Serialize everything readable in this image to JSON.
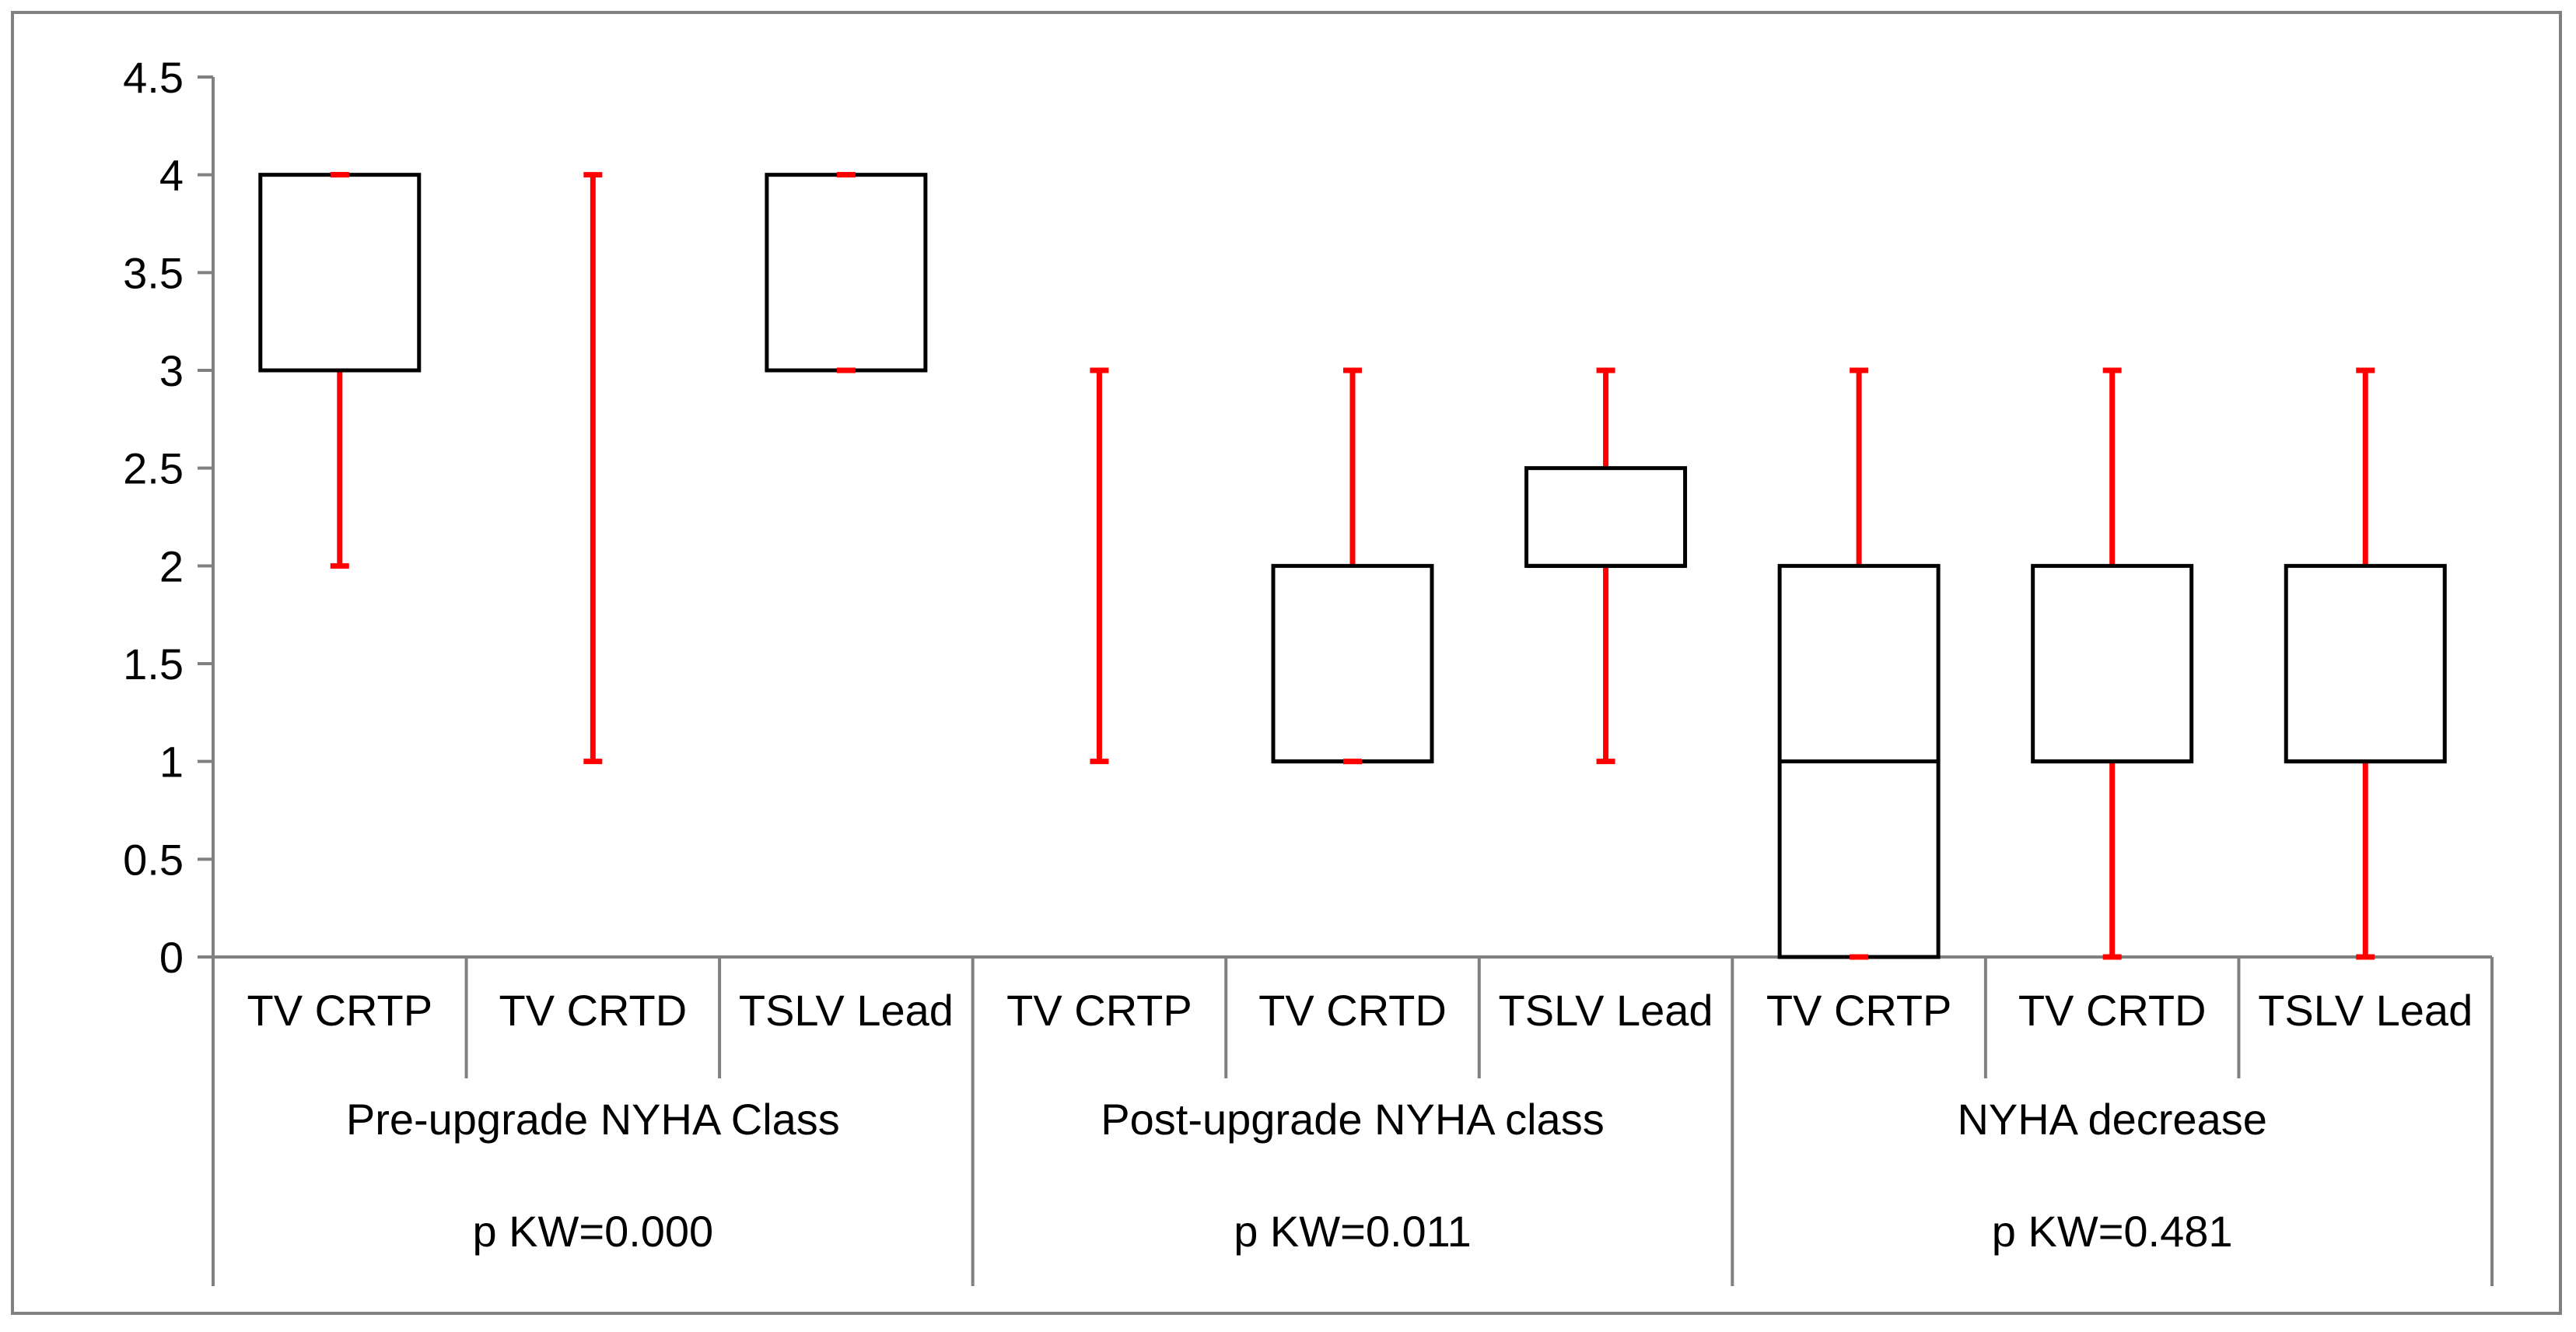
{
  "chart_data": {
    "type": "box",
    "ylim": [
      0,
      4.5
    ],
    "yticks": [
      0,
      0.5,
      1,
      1.5,
      2,
      2.5,
      3,
      3.5,
      4,
      4.5
    ],
    "ytick_labels": [
      "0",
      "0.5",
      "1",
      "1.5",
      "2",
      "2.5",
      "3",
      "3.5",
      "4",
      "4.5"
    ],
    "groups": [
      {
        "label": "Pre-upgrade NYHA Class",
        "pvalue": "p KW=0.000",
        "boxes": [
          {
            "category": "TV CRTP",
            "min": 2,
            "q1": 3,
            "median": 3,
            "q3": 4,
            "max": 4
          },
          {
            "category": "TV CRTD",
            "min": 1,
            "q1": 3,
            "median": 3,
            "q3": 3,
            "max": 4
          },
          {
            "category": "TSLV Lead",
            "min": 3,
            "q1": 3,
            "median": 3,
            "q3": 4,
            "max": 4
          }
        ]
      },
      {
        "label": "Post-upgrade NYHA class",
        "pvalue": "p KW=0.011",
        "boxes": [
          {
            "category": "TV CRTP",
            "min": 1,
            "q1": 2,
            "median": 2,
            "q3": 2,
            "max": 3
          },
          {
            "category": "TV CRTD",
            "min": 1,
            "q1": 1,
            "median": 1,
            "q3": 2,
            "max": 3
          },
          {
            "category": "TSLV Lead",
            "min": 1,
            "q1": 2,
            "median": 2,
            "q3": 2.5,
            "max": 3
          }
        ]
      },
      {
        "label": "NYHA decrease",
        "pvalue": "p KW=0.481",
        "boxes": [
          {
            "category": "TV CRTP",
            "min": 0,
            "q1": 0,
            "median": 1,
            "q3": 2,
            "max": 3
          },
          {
            "category": "TV CRTD",
            "min": 0,
            "q1": 1,
            "median": 1,
            "q3": 2,
            "max": 3
          },
          {
            "category": "TSLV Lead",
            "min": 0,
            "q1": 1,
            "median": 1,
            "q3": 2,
            "max": 3
          }
        ]
      }
    ],
    "colors": {
      "whisker": "#ff0000",
      "box": "#000000",
      "axis": "#808080"
    },
    "grid": false,
    "legend": "none"
  }
}
